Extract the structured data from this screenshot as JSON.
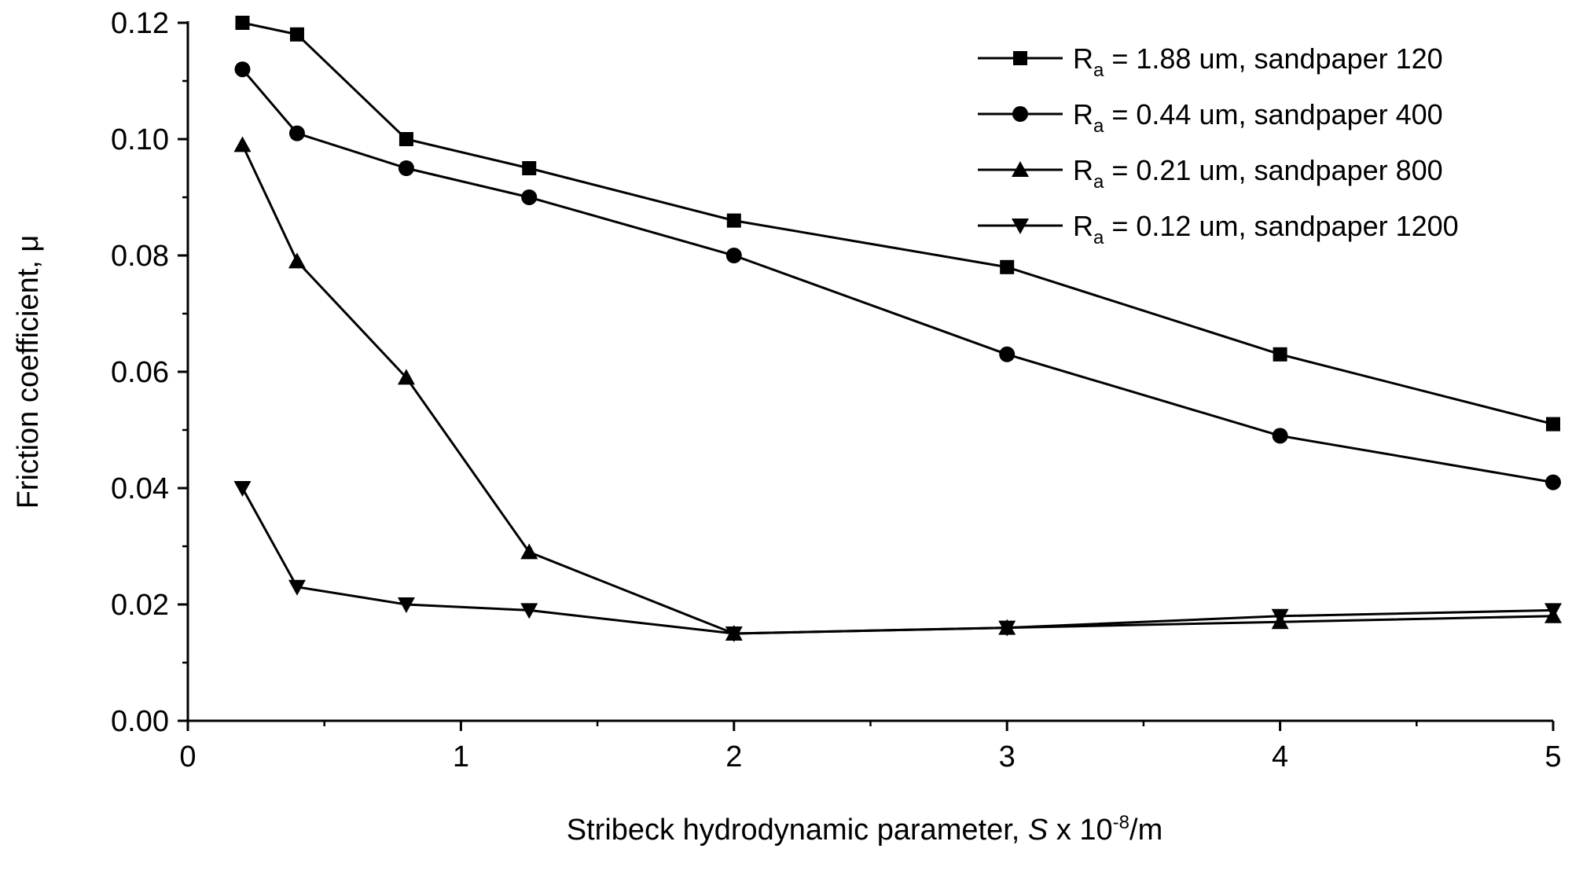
{
  "chart_data": {
    "type": "line",
    "xlabel": [
      "Stribeck hydrodynamic parameter, ",
      "S",
      " x 10",
      "-8",
      "/m"
    ],
    "ylabel": "Friction coefficient, μ",
    "x": [
      0.2,
      0.4,
      0.8,
      1.25,
      2,
      3,
      4,
      5
    ],
    "series": [
      {
        "name": "Ra = 1.88 um, sandpaper 120",
        "color": "#000000",
        "marker": "square",
        "values": [
          0.12,
          0.118,
          0.1,
          0.095,
          0.086,
          0.078,
          0.063,
          0.051
        ]
      },
      {
        "name": "Ra = 0.44 um, sandpaper 400",
        "color": "#000000",
        "marker": "circle",
        "values": [
          0.112,
          0.101,
          0.095,
          0.09,
          0.08,
          0.063,
          0.049,
          0.041
        ]
      },
      {
        "name": "Ra = 0.21 um, sandpaper 800",
        "color": "#000000",
        "marker": "triangle-up",
        "values": [
          0.099,
          0.079,
          0.059,
          0.029,
          0.015,
          0.016,
          0.017,
          0.018
        ]
      },
      {
        "name": "Ra = 0.12 um, sandpaper 1200",
        "color": "#000000",
        "marker": "triangle-down",
        "values": [
          0.04,
          0.023,
          0.02,
          0.019,
          0.015,
          0.016,
          0.018,
          0.019
        ]
      }
    ],
    "xlim": [
      0,
      5
    ],
    "ylim": [
      0,
      0.12
    ],
    "xticks": [
      0,
      1,
      2,
      3,
      4,
      5
    ],
    "xminor_ticks": [
      0.5,
      1.5,
      2.5,
      3.5,
      4.5
    ],
    "yticks": [
      {
        "value": 0,
        "label": "0.00"
      },
      0.02,
      0.04,
      0.06,
      0.08,
      {
        "value": 0.1,
        "label": "0.10"
      },
      0.12
    ],
    "yminor_ticks": [
      0.01,
      0.03,
      0.05,
      0.07,
      0.09,
      0.11
    ],
    "legend": "upper right"
  }
}
